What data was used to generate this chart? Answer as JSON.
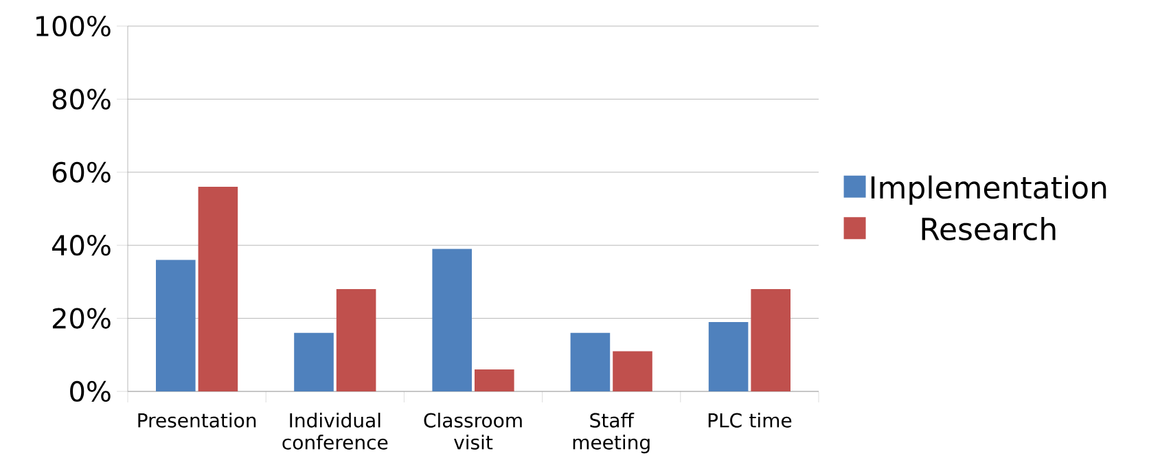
{
  "chart_data": {
    "type": "bar",
    "categories": [
      "Presentation",
      "Individual conference",
      "Classroom visit",
      "Staff meeting",
      "PLC time"
    ],
    "series": [
      {
        "name": "Implementation",
        "color": "#4f81bd",
        "values": [
          36,
          16,
          39,
          16,
          19
        ]
      },
      {
        "name": "Research",
        "color": "#c0504d",
        "values": [
          56,
          28,
          6,
          11,
          28
        ]
      }
    ],
    "ylim": [
      0,
      100
    ],
    "yticks": [
      {
        "value": 0,
        "label": "0%"
      },
      {
        "value": 20,
        "label": "20%"
      },
      {
        "value": 40,
        "label": "40%"
      },
      {
        "value": 60,
        "label": "60%"
      },
      {
        "value": 80,
        "label": "80%"
      },
      {
        "value": 100,
        "label": "100%"
      }
    ],
    "grid": "y",
    "legend": "right"
  }
}
